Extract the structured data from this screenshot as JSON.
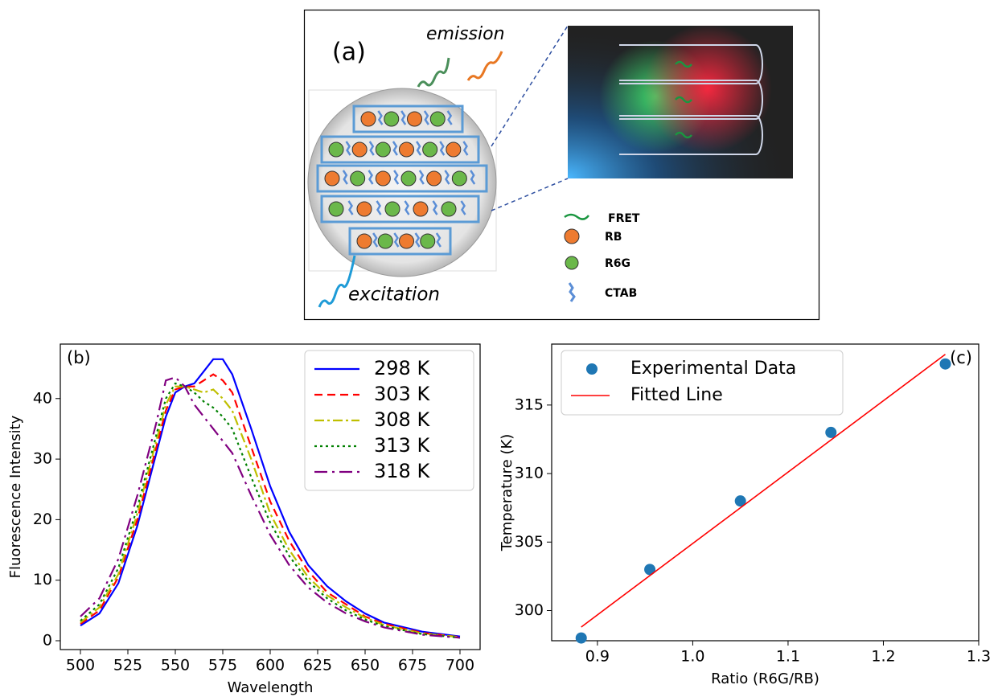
{
  "figure_a": {
    "label": "(a)",
    "emission": "emission",
    "excitation": "excitation",
    "legend": [
      "FRET",
      "RB",
      "R6G",
      "CTAB"
    ]
  },
  "chart_data": [
    {
      "type": "line",
      "panel_label": "(b)",
      "x_label": "Wavelength",
      "y_label": "Fluorescence Intensity",
      "x": [
        500,
        510,
        520,
        530,
        540,
        545,
        550,
        555,
        560,
        565,
        570,
        575,
        580,
        590,
        600,
        610,
        620,
        630,
        640,
        650,
        660,
        680,
        700
      ],
      "series": [
        {
          "name": "298 K",
          "color": "#0000ff",
          "linestyle": "solid",
          "values": [
            2.5,
            4.5,
            9.5,
            19,
            31,
            37,
            41,
            42,
            42.5,
            44.5,
            46.5,
            46.5,
            44,
            35,
            25.5,
            18,
            12.5,
            9,
            6.5,
            4.5,
            3,
            1.5,
            0.7
          ]
        },
        {
          "name": "303 K",
          "color": "#ff0000",
          "linestyle": "dashed",
          "values": [
            2.8,
            5,
            10.5,
            20,
            32,
            38,
            41.5,
            42,
            42,
            43,
            44,
            43,
            41,
            32,
            23,
            16.5,
            11.5,
            8,
            6,
            4,
            2.8,
            1.3,
            0.6
          ]
        },
        {
          "name": "308 K",
          "color": "#bfbf00",
          "linestyle": "dashdot",
          "values": [
            3,
            5.5,
            11,
            21,
            33,
            39,
            42,
            42,
            41.5,
            41,
            41.5,
            40,
            38,
            30,
            21,
            15,
            10.5,
            7.5,
            5.5,
            3.8,
            2.6,
            1.2,
            0.6
          ]
        },
        {
          "name": "313 K",
          "color": "#008000",
          "linestyle": "dotted",
          "values": [
            3.3,
            6,
            12,
            22,
            34,
            40,
            42.5,
            42,
            41,
            39.5,
            38.5,
            37,
            35,
            27,
            19.5,
            14,
            9.8,
            7,
            5,
            3.5,
            2.4,
            1.1,
            0.5
          ]
        },
        {
          "name": "318 K",
          "color": "#800080",
          "linestyle": "longdashdot",
          "values": [
            4,
            7,
            13.5,
            24,
            36,
            43,
            43.5,
            42,
            39,
            37,
            35,
            33,
            31,
            24,
            17.5,
            12.5,
            8.8,
            6.3,
            4.5,
            3.2,
            2.2,
            1,
            0.5
          ]
        }
      ],
      "xlim": [
        489.4,
        710.6
      ],
      "xticks": [
        500,
        525,
        550,
        575,
        600,
        625,
        650,
        675,
        700
      ],
      "ylim": [
        -1.46,
        49
      ],
      "yticks": [
        0,
        10,
        20,
        30,
        40
      ],
      "legend": "upper right"
    },
    {
      "type": "scatter",
      "panel_label": "(c)",
      "x_label": "Ratio (R6G/RB)",
      "y_label": "Temperature (K)",
      "series": [
        {
          "name": "Experimental Data",
          "color": "#1f77b4",
          "style": "marker",
          "x": [
            0.883,
            0.955,
            1.05,
            1.145,
            1.265
          ],
          "values": [
            298,
            303,
            308,
            313,
            318
          ]
        },
        {
          "name": "Fitted Line",
          "color": "#ff0000",
          "style": "line",
          "x": [
            0.883,
            1.265
          ],
          "values": [
            298.8,
            318.7
          ]
        }
      ],
      "xlim": [
        0.852,
        1.3
      ],
      "xticks": [
        0.9,
        {
          "value": 1,
          "label": "1.0"
        },
        1.1,
        1.2,
        1.3
      ],
      "ylim": [
        297.8,
        319.45
      ],
      "yticks": [
        300,
        305,
        310,
        315
      ],
      "legend": "upper left"
    }
  ]
}
